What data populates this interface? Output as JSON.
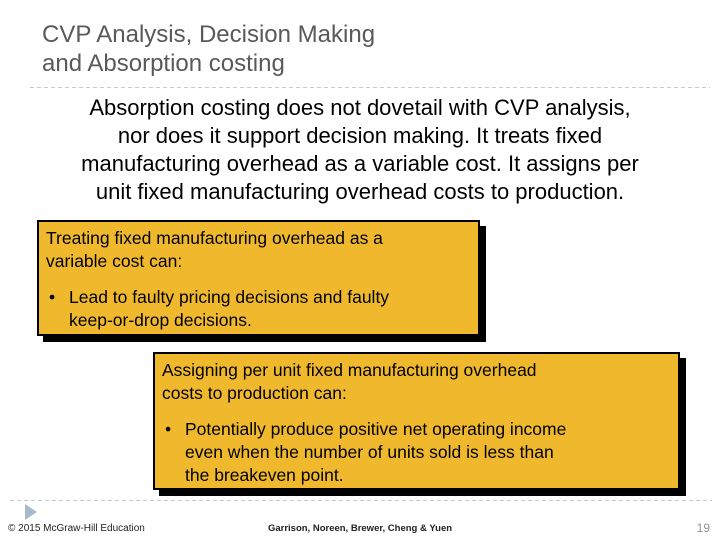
{
  "slide": {
    "title_lines": [
      "CVP Analysis, Decision Making",
      "and Absorption costing"
    ],
    "intro_lines": [
      "Absorption costing does not dovetail with CVP analysis,",
      "nor does it support decision making. It treats fixed",
      "manufacturing overhead as a variable cost. It assigns per",
      "unit fixed manufacturing overhead costs to production."
    ],
    "bullet_marker": "•",
    "callouts": [
      {
        "heading_lines": [
          "Treating fixed manufacturing overhead as a",
          "variable cost can:"
        ],
        "bullet_lines": [
          "Lead to faulty pricing decisions and faulty",
          "keep-or-drop decisions."
        ]
      },
      {
        "heading_lines": [
          "Assigning per unit fixed manufacturing overhead",
          "costs to production can:"
        ],
        "bullet_lines": [
          "Potentially produce positive net operating income",
          "even when the number of units sold is less than",
          "the breakeven point."
        ]
      }
    ],
    "footer": {
      "copyright": "© 2015 McGraw-Hill Education",
      "authors": "Garrison, Noreen, Brewer, Cheng & Yuen",
      "page_number": "19"
    },
    "colors": {
      "title_text": "#595959",
      "body_text": "#000000",
      "callout_fill": "#f0b92d",
      "callout_border": "#000000",
      "divider": "#c3ccd5",
      "arrow": "#a9bacf",
      "page_number": "#8c959d"
    }
  }
}
